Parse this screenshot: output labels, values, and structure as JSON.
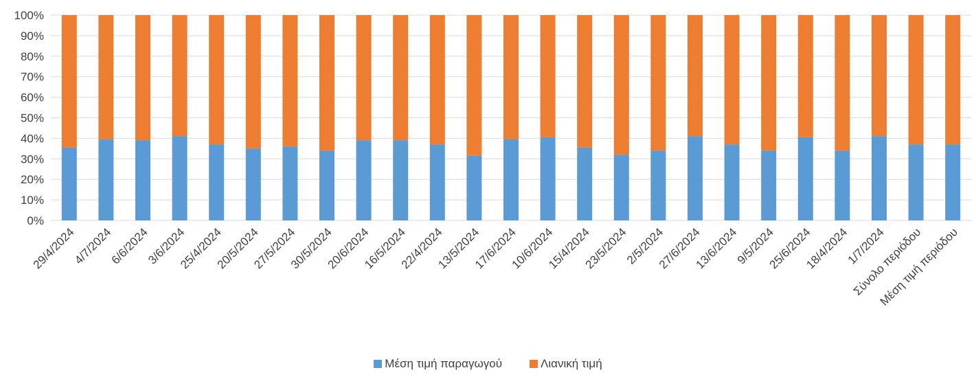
{
  "colors": {
    "producer": "#5B9BD5",
    "retail": "#ED7D31",
    "grid": "#D9D9D9",
    "text": "#404040"
  },
  "chart_data": {
    "type": "bar",
    "stacked": "percent",
    "categories": [
      "29/4/2024",
      "4/7/2024",
      "6/6/2024",
      "3/6/2024",
      "25/4/2024",
      "20/5/2024",
      "27/5/2024",
      "30/5/2024",
      "20/6/2024",
      "16/5/2024",
      "22/4/2024",
      "13/5/2024",
      "17/6/2024",
      "10/6/2024",
      "15/4/2024",
      "23/5/2024",
      "2/5/2024",
      "27/6/2024",
      "13/6/2024",
      "9/5/2024",
      "25/6/2024",
      "18/4/2024",
      "1/7/2024",
      "Σύνολο περιόδου",
      "Μέση τιμή περιόδου"
    ],
    "series": [
      {
        "name": "Μέση τιμή παραγωγού",
        "values": [
          35.5,
          39.5,
          39,
          41,
          37,
          35,
          36,
          34,
          39,
          39,
          37,
          31.5,
          39.5,
          40.5,
          35.5,
          32,
          34,
          41,
          37,
          34,
          40.5,
          34,
          41,
          37,
          37
        ]
      },
      {
        "name": "Λιανική τιμή",
        "values": [
          64.5,
          60.5,
          61,
          59,
          63,
          65,
          64,
          66,
          61,
          61,
          63,
          68.5,
          60.5,
          59.5,
          64.5,
          68,
          66,
          59,
          63,
          66,
          59.5,
          66,
          59,
          63,
          63
        ]
      }
    ],
    "yticks": [
      "0%",
      "10%",
      "20%",
      "30%",
      "40%",
      "50%",
      "60%",
      "70%",
      "80%",
      "90%",
      "100%"
    ],
    "ylim": [
      0,
      100
    ],
    "grid": true,
    "legend": "bottom"
  }
}
